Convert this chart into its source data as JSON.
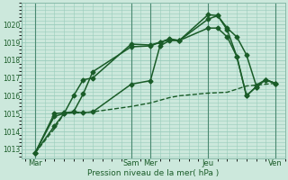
{
  "bg_color": "#cce8dc",
  "grid_color": "#99ccbb",
  "line_color": "#1a5c28",
  "xlabel": "Pression niveau de la mer( hPa )",
  "ylim": [
    1012.5,
    1021.2
  ],
  "yticks": [
    1013,
    1014,
    1015,
    1016,
    1017,
    1018,
    1019,
    1020
  ],
  "xlim": [
    -0.2,
    13.5
  ],
  "xtick_labels": [
    "Mar",
    "Sam",
    "Mer",
    "Jeu",
    "Ven"
  ],
  "xtick_positions": [
    0.5,
    5.5,
    6.5,
    9.5,
    13.0
  ],
  "vline_positions": [
    0.5,
    5.5,
    6.5,
    9.5,
    13.0
  ],
  "series": [
    {
      "x": [
        0.5,
        1.5,
        2.0,
        2.5,
        3.0,
        3.5,
        5.5,
        6.5,
        7.0,
        7.5,
        8.0,
        9.5,
        10.0,
        10.5,
        11.0,
        11.5,
        12.0,
        12.5,
        13.0
      ],
      "y": [
        1012.8,
        1014.85,
        1015.0,
        1016.0,
        1016.9,
        1017.0,
        1018.9,
        1018.85,
        1019.0,
        1019.15,
        1019.1,
        1020.3,
        1020.5,
        1019.8,
        1019.3,
        1018.3,
        1016.6,
        1016.9,
        1016.7
      ],
      "style": "D-",
      "lw": 1.1,
      "ms": 2.5
    },
    {
      "x": [
        0.5,
        1.5,
        2.0,
        2.5,
        3.0,
        3.5,
        5.5,
        6.5,
        7.0,
        7.5,
        8.0,
        9.5,
        10.0,
        10.5,
        11.0,
        11.5,
        12.0,
        12.5,
        13.0
      ],
      "y": [
        1012.8,
        1015.0,
        1015.05,
        1015.1,
        1016.1,
        1017.35,
        1018.75,
        1018.8,
        1019.0,
        1019.2,
        1019.1,
        1020.55,
        1020.5,
        1019.7,
        1018.2,
        1016.0,
        1016.5,
        1016.9,
        1016.7
      ],
      "style": "D-",
      "lw": 1.1,
      "ms": 2.5
    },
    {
      "x": [
        0.5,
        1.5,
        2.0,
        2.5,
        3.0,
        3.5,
        5.5,
        6.5,
        7.0,
        7.5,
        8.0,
        9.5,
        10.5,
        11.5,
        13.0
      ],
      "y": [
        1012.8,
        1014.15,
        1015.0,
        1015.05,
        1015.05,
        1015.1,
        1015.4,
        1015.6,
        1015.75,
        1015.9,
        1016.0,
        1016.15,
        1016.2,
        1016.55,
        1016.7
      ],
      "style": "--",
      "lw": 1.0,
      "ms": 0
    },
    {
      "x": [
        0.5,
        1.5,
        2.0,
        2.5,
        3.0,
        3.5,
        5.5,
        6.5,
        7.0,
        7.5,
        8.0,
        9.5,
        10.0,
        10.5,
        11.0,
        11.5,
        12.0,
        12.5,
        13.0
      ],
      "y": [
        1012.8,
        1014.3,
        1015.0,
        1015.1,
        1015.05,
        1015.1,
        1016.65,
        1016.85,
        1018.8,
        1019.1,
        1019.1,
        1019.8,
        1019.8,
        1019.3,
        1018.2,
        1016.0,
        1016.5,
        1016.9,
        1016.7
      ],
      "style": "D-",
      "lw": 1.1,
      "ms": 2.5
    }
  ],
  "figsize": [
    3.2,
    2.0
  ],
  "dpi": 100
}
